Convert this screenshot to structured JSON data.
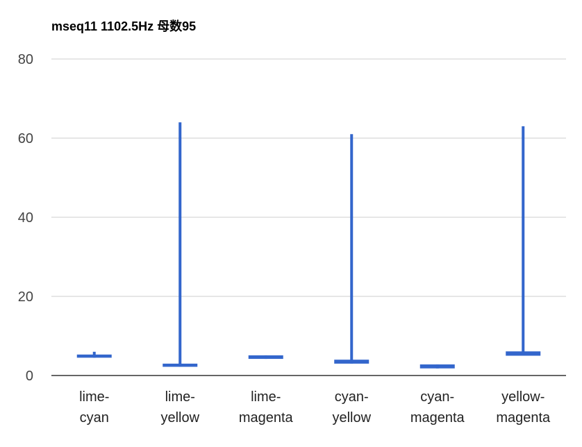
{
  "chart_data": {
    "type": "candlestick",
    "title": "mseq11 1102.5Hz 母数95",
    "xlabel": "",
    "ylabel": "",
    "ylim": [
      0,
      80
    ],
    "yticks": [
      0,
      20,
      40,
      60,
      80
    ],
    "grid": true,
    "legend": "none",
    "color": "#3366cc",
    "categories": [
      [
        "lime-",
        "cyan"
      ],
      [
        "lime-",
        "yellow"
      ],
      [
        "lime-",
        "magenta"
      ],
      [
        "cyan-",
        "yellow"
      ],
      [
        "cyan-",
        "magenta"
      ],
      [
        "yellow-",
        "magenta"
      ]
    ],
    "series": [
      {
        "points": [
          {
            "low": 4.5,
            "open": 4.5,
            "close": 5.3,
            "high": 6.0
          },
          {
            "low": 2.2,
            "open": 2.2,
            "close": 3.0,
            "high": 64.0
          },
          {
            "low": 4.2,
            "open": 4.2,
            "close": 5.1,
            "high": 5.1
          },
          {
            "low": 3.0,
            "open": 3.0,
            "close": 4.0,
            "high": 61.0
          },
          {
            "low": 1.8,
            "open": 1.8,
            "close": 2.8,
            "high": 2.8
          },
          {
            "low": 5.0,
            "open": 5.0,
            "close": 6.1,
            "high": 63.0
          }
        ]
      }
    ]
  }
}
